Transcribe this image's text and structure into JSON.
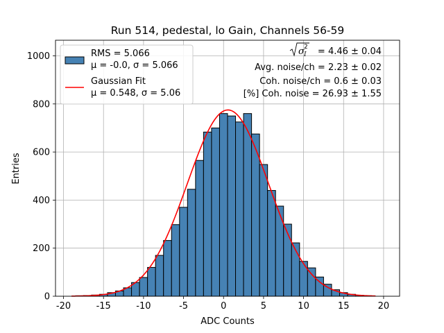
{
  "chart_data": {
    "type": "bar",
    "title": "Run 514, pedestal, lo Gain, Channels 56-59",
    "xlabel": "ADC Counts",
    "ylabel": "Entries",
    "xlim": [
      -21,
      22
    ],
    "ylim": [
      0,
      1065
    ],
    "xticks": [
      "-20",
      "-15",
      "-10",
      "-5",
      "0",
      "5",
      "10",
      "15",
      "20"
    ],
    "yticks": [
      "0",
      "200",
      "400",
      "600",
      "800",
      "1000"
    ],
    "grid": true,
    "bar_color": "#4682b4",
    "bar_edge_color": "#000000",
    "fit_color": "#ff0000",
    "bin_width": 1,
    "bins": [
      [
        -18,
        2
      ],
      [
        -17,
        3
      ],
      [
        -16,
        5
      ],
      [
        -15,
        8
      ],
      [
        -14,
        15
      ],
      [
        -13,
        22
      ],
      [
        -12,
        35
      ],
      [
        -11,
        57
      ],
      [
        -10,
        78
      ],
      [
        -9,
        120
      ],
      [
        -8,
        170
      ],
      [
        -7,
        232
      ],
      [
        -6,
        298
      ],
      [
        -5,
        370
      ],
      [
        -4,
        445
      ],
      [
        -3,
        565
      ],
      [
        -2,
        683
      ],
      [
        -1,
        700
      ],
      [
        0,
        760
      ],
      [
        1,
        750
      ],
      [
        2,
        725
      ],
      [
        3,
        760
      ],
      [
        4,
        675
      ],
      [
        5,
        548
      ],
      [
        6,
        440
      ],
      [
        7,
        375
      ],
      [
        8,
        300
      ],
      [
        9,
        222
      ],
      [
        10,
        145
      ],
      [
        11,
        118
      ],
      [
        12,
        80
      ],
      [
        13,
        50
      ],
      [
        14,
        27
      ],
      [
        15,
        15
      ],
      [
        16,
        8
      ],
      [
        17,
        4
      ],
      [
        18,
        2
      ]
    ],
    "fit": {
      "mu": 0.548,
      "sigma": 5.06,
      "amplitude": 775,
      "x_range": [
        -19,
        19
      ]
    },
    "legend": {
      "placement": "top-left",
      "hist_line1": "RMS = 5.066",
      "hist_line2": "μ = -0.0, σ = 5.066",
      "fit_line1": "Gaussian Fit",
      "fit_line2": "μ = 0.548, σ = 5.06"
    },
    "stats": {
      "sigma_value": " = 4.46 ± 0.04",
      "avg_noise": "Avg. noise/ch = 2.23 ± 0.02",
      "coh_noise": "Coh. noise/ch = 0.6 ± 0.03",
      "coh_pct": "[%] Coh. noise = 26.93 ± 1.55"
    }
  }
}
